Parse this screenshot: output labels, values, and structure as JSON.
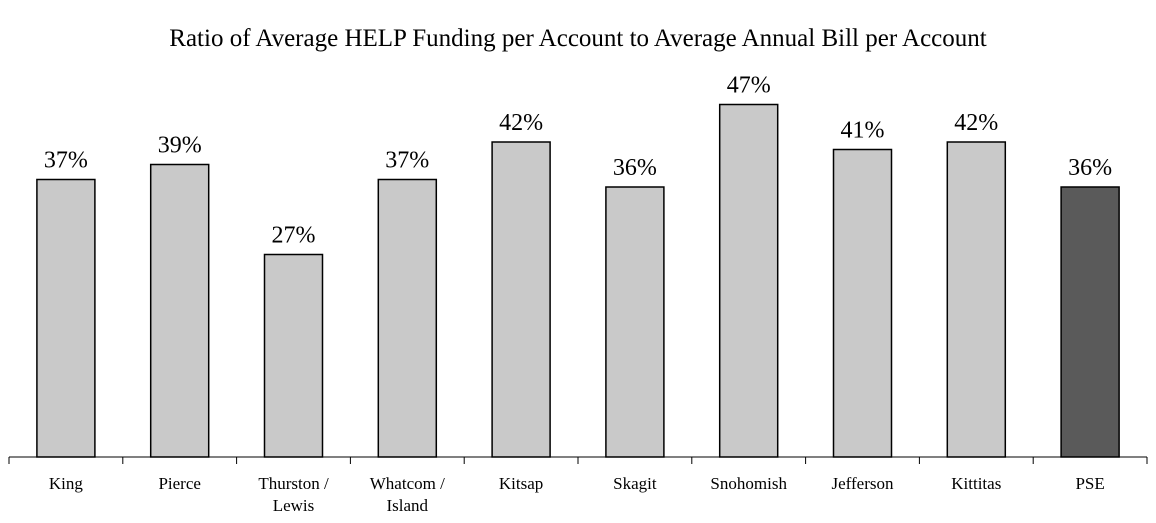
{
  "chart_data": {
    "type": "bar",
    "title": "Ratio of Average HELP Funding per Account to Average Annual Bill per Account",
    "categories": [
      "King",
      "Pierce",
      "Thurston / Lewis",
      "Whatcom / Island",
      "Kitsap",
      "Skagit",
      "Snohomish",
      "Jefferson",
      "Kittitas",
      "PSE"
    ],
    "values": [
      37,
      39,
      27,
      37,
      42,
      36,
      47,
      41,
      42,
      36
    ],
    "value_labels": [
      "37%",
      "39%",
      "27%",
      "37%",
      "42%",
      "36%",
      "47%",
      "41%",
      "42%",
      "36%"
    ],
    "colors": [
      "#c9c9c9",
      "#c9c9c9",
      "#c9c9c9",
      "#c9c9c9",
      "#c9c9c9",
      "#c9c9c9",
      "#c9c9c9",
      "#c9c9c9",
      "#c9c9c9",
      "#5a5a5a"
    ],
    "ylim": [
      0,
      60
    ]
  }
}
